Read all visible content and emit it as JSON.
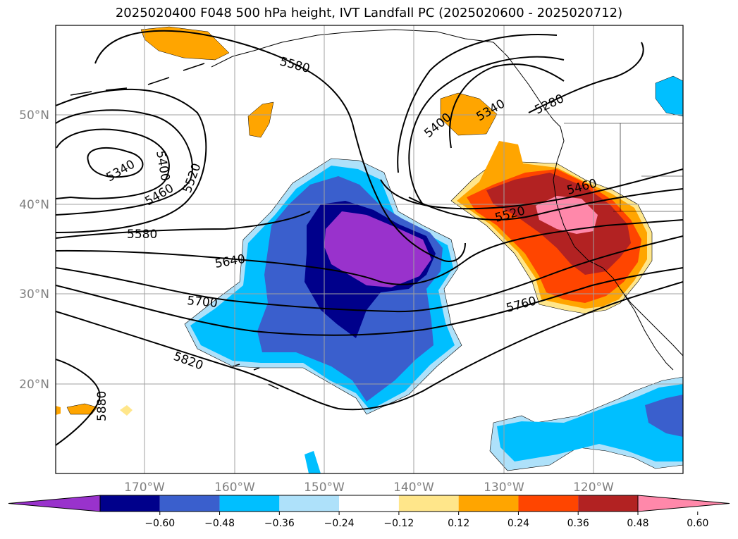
{
  "title": "2025020400 F048 500 hPa height, IVT Landfall PC (2025020600 - 2025020712)",
  "lat_labels": [
    "50°N",
    "40°N",
    "30°N",
    "20°N"
  ],
  "lon_labels": [
    "170°W",
    "160°W",
    "150°W",
    "140°W",
    "130°W",
    "120°W"
  ],
  "contour_labels": [
    "5340",
    "5400",
    "5460",
    "5520",
    "5580",
    "5580",
    "5640",
    "5700",
    "5820",
    "5880",
    "5400",
    "5340",
    "5280",
    "5460",
    "5520",
    "5760"
  ],
  "colorbar": {
    "tick_labels": [
      "−0.60",
      "−0.48",
      "−0.36",
      "−0.24",
      "−0.12",
      "0.12",
      "0.24",
      "0.36",
      "0.48",
      "0.60"
    ],
    "colors": [
      "#9932cc",
      "#00008b",
      "#3a5fcd",
      "#00bfff",
      "#aee1fa",
      "#ffffff",
      "#ffe68a",
      "#ffa500",
      "#ff4500",
      "#b22222",
      "#ff88aa"
    ]
  },
  "colors": {
    "neg_extreme": "#9932cc",
    "neg_strong": "#00008b",
    "neg_mid": "#3a5fcd",
    "neg_weak": "#00bfff",
    "neg_faint": "#aee1fa",
    "pos_faint": "#ffe68a",
    "pos_weak": "#ffa500",
    "pos_mid": "#ff4500",
    "pos_strong": "#b22222",
    "pos_extreme": "#ff88aa"
  }
}
